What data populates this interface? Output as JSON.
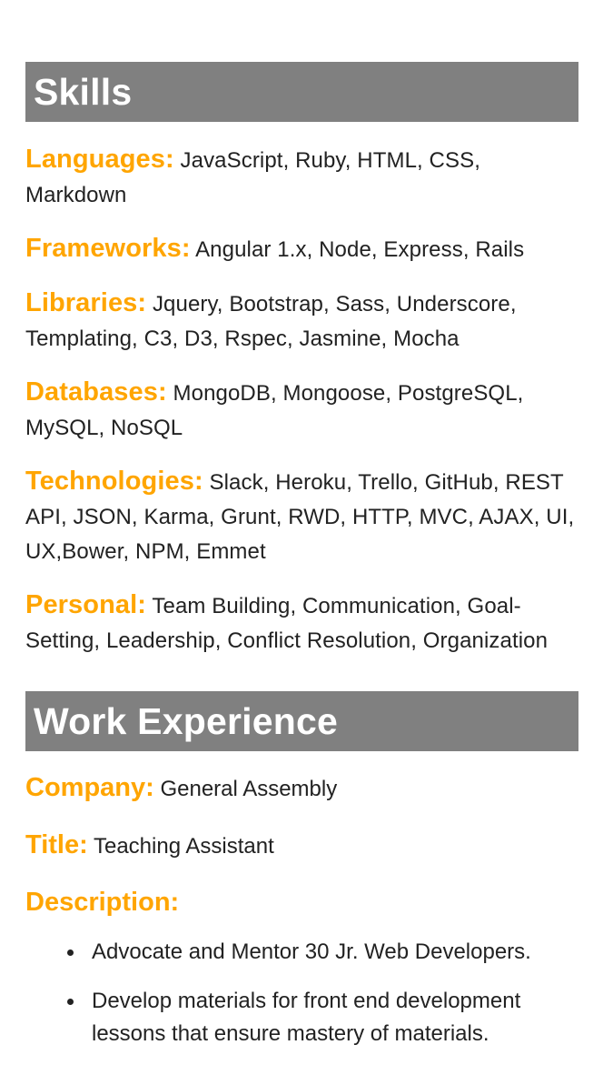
{
  "skills": {
    "title": "Skills",
    "items": [
      {
        "label": "Languages:",
        "value": "JavaScript, Ruby, HTML, CSS, Markdown"
      },
      {
        "label": "Frameworks:",
        "value": "Angular 1.x, Node, Express, Rails"
      },
      {
        "label": "Libraries:",
        "value": "Jquery, Bootstrap, Sass, Underscore, Templating, C3, D3, Rspec, Jasmine, Mocha"
      },
      {
        "label": "Databases:",
        "value": "MongoDB, Mongoose, PostgreSQL, MySQL, NoSQL"
      },
      {
        "label": "Technologies:",
        "value": "Slack, Heroku, Trello, GitHub, REST API, JSON, Karma, Grunt, RWD, HTTP, MVC, AJAX, UI, UX,Bower, NPM, Emmet"
      },
      {
        "label": "Personal:",
        "value": "Team Building, Communication, Goal-Setting, Leadership, Conflict Resolution, Organization"
      }
    ]
  },
  "work": {
    "title": "Work Experience",
    "company_label": "Company:",
    "company": "General Assembly",
    "title_label": "Title:",
    "job_title": "Teaching Assistant",
    "description_label": "Description:",
    "description_items": [
      "Advocate and Mentor 30 Jr. Web Developers.",
      "Develop materials for front end development lessons that ensure mastery of materials."
    ]
  }
}
